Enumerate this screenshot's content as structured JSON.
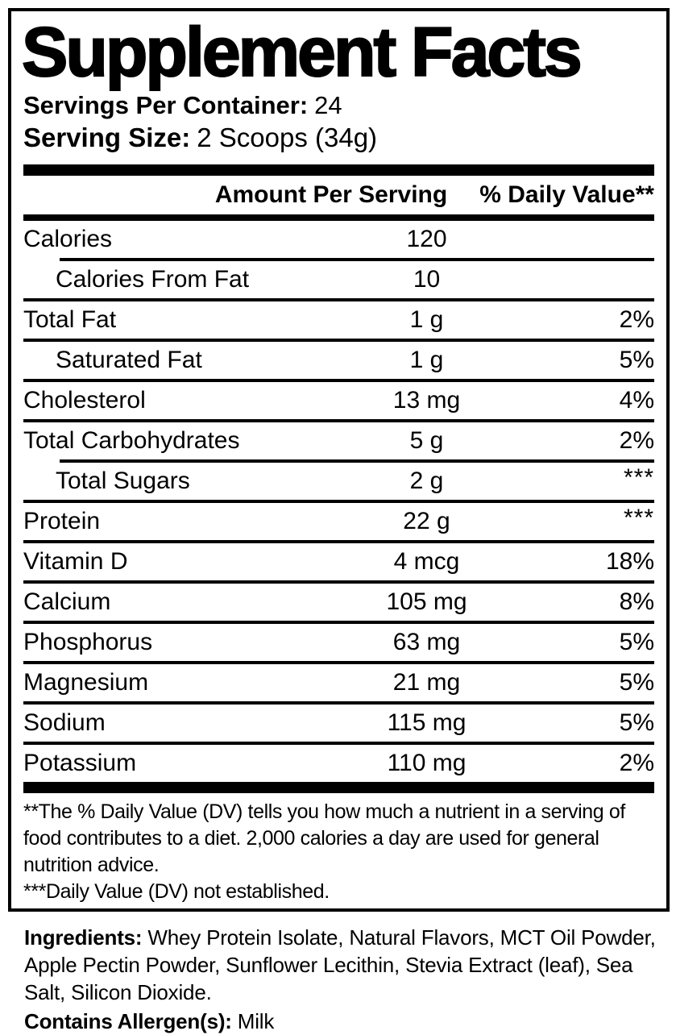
{
  "panel": {
    "title": "Supplement Facts",
    "servings_per_container": {
      "label": "Servings Per Container:",
      "value": "24"
    },
    "serving_size": {
      "label": "Serving Size:",
      "value": "2 Scoops (34g)"
    },
    "columns": {
      "amount": "Amount Per Serving",
      "daily_value": "% Daily Value**"
    },
    "rows": [
      {
        "name": "Calories",
        "amount": "120",
        "dv": "",
        "indent": false,
        "divider": "none"
      },
      {
        "name": "Calories From Fat",
        "amount": "10",
        "dv": "",
        "indent": true,
        "divider": "indent"
      },
      {
        "name": "Total Fat",
        "amount": "1 g",
        "dv": "2%",
        "indent": false,
        "divider": "full"
      },
      {
        "name": "Saturated Fat",
        "amount": "1 g",
        "dv": "5%",
        "indent": true,
        "divider": "full"
      },
      {
        "name": "Cholesterol",
        "amount": "13 mg",
        "dv": "4%",
        "indent": false,
        "divider": "full"
      },
      {
        "name": "Total Carbohydrates",
        "amount": "5 g",
        "dv": "2%",
        "indent": false,
        "divider": "full"
      },
      {
        "name": "Total Sugars",
        "amount": "2 g",
        "dv": "***",
        "indent": true,
        "divider": "indent"
      },
      {
        "name": "Protein",
        "amount": "22 g",
        "dv": "***",
        "indent": false,
        "divider": "full"
      },
      {
        "name": "Vitamin D",
        "amount": "4 mcg",
        "dv": "18%",
        "indent": false,
        "divider": "full"
      },
      {
        "name": "Calcium",
        "amount": "105 mg",
        "dv": "8%",
        "indent": false,
        "divider": "full"
      },
      {
        "name": "Phosphorus",
        "amount": "63 mg",
        "dv": "5%",
        "indent": false,
        "divider": "full"
      },
      {
        "name": "Magnesium",
        "amount": "21 mg",
        "dv": "5%",
        "indent": false,
        "divider": "full"
      },
      {
        "name": "Sodium",
        "amount": "115 mg",
        "dv": "5%",
        "indent": false,
        "divider": "full"
      },
      {
        "name": "Potassium",
        "amount": "110 mg",
        "dv": "2%",
        "indent": false,
        "divider": "full"
      }
    ],
    "footnotes": {
      "daily_value_note": "**The % Daily Value (DV) tells you how much a nutrient in a serving of food contributes to a diet. 2,000 calories a day are used for general nutrition advice.",
      "not_established_note": "***Daily Value (DV) not established."
    }
  },
  "ingredients": {
    "label": "Ingredients:",
    "list": "Whey Protein Isolate, Natural Flavors, MCT Oil Powder, Apple Pectin Powder, Sunflower Lecithin, Stevia Extract (leaf), Sea Salt, Silicon Dioxide.",
    "allergen_label": "Contains Allergen(s):",
    "allergen_value": "Milk"
  },
  "colors": {
    "text": "#000000",
    "background": "#ffffff"
  }
}
